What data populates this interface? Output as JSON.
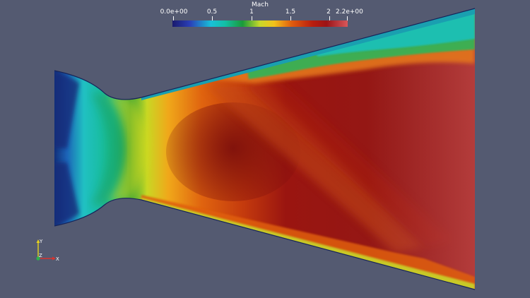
{
  "colorbar": {
    "title": "Mach",
    "tick_labels": [
      "0.0e+00",
      "0.5",
      "1",
      "1.5",
      "2",
      "2.2e+00"
    ],
    "colormap_stops": [
      "#1a1a6e",
      "#2a3fb8",
      "#19c0d8",
      "#13bfa6",
      "#1a9a3a",
      "#c9d82a",
      "#f2c21b",
      "#e05d0e",
      "#b81d0e",
      "#9c1316",
      "#b8363b",
      "#d9585a"
    ]
  },
  "field": {
    "variable": "Mach",
    "colors": {
      "subsonic_low": "#122c7a",
      "subsonic": "#1fc0b4",
      "sonic": "#cfd21e",
      "supersonic": "#e0660f",
      "high": "#8d1412",
      "peak": "#b03b37"
    }
  },
  "axes": {
    "labels": [
      "Y",
      "Z",
      "X"
    ],
    "colors": {
      "x": "#d8332d",
      "y": "#e6d21e",
      "z": "#2bb24d"
    }
  },
  "background_color": "#545a71"
}
